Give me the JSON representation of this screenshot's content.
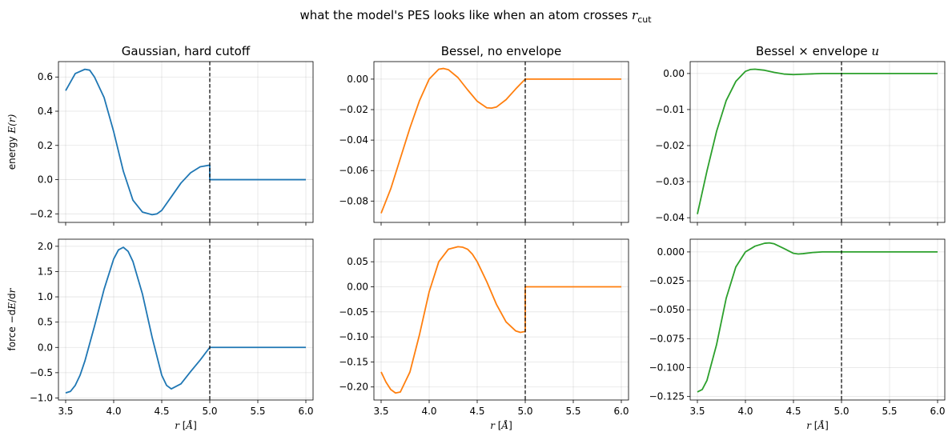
{
  "figure": {
    "suptitle": "what the model's PES looks like when an atom crosses r_cut",
    "suptitle_prefix": "what the model's PES looks like when an atom crosses ",
    "suptitle_math": "r",
    "suptitle_sub": "cut"
  },
  "chart_data": [
    {
      "type": "line",
      "row": 0,
      "col": 0,
      "title": "Gaussian, hard cutoff",
      "ylabel": "energy E(r)",
      "ylabel_prefix": "energy ",
      "ylabel_math": "E(r)",
      "xlabel": "",
      "xlim": [
        3.425,
        6.075
      ],
      "ylim": [
        -0.25,
        0.69
      ],
      "xticks": [
        "3.5",
        "4.0",
        "4.5",
        "5.0",
        "5.5",
        "6.0"
      ],
      "yticks": [
        "−0.2",
        "0.0",
        "0.2",
        "0.4",
        "0.6"
      ],
      "ytick_values": [
        -0.2,
        0.0,
        0.2,
        0.4,
        0.6
      ],
      "cutoff_x": 5.0,
      "grid": true,
      "series": [
        {
          "color": "#1f77b4",
          "x": [
            3.5,
            3.6,
            3.7,
            3.75,
            3.8,
            3.9,
            4.0,
            4.1,
            4.2,
            4.3,
            4.4,
            4.45,
            4.5,
            4.6,
            4.7,
            4.8,
            4.9,
            5.0,
            5.0,
            6.0
          ],
          "y": [
            0.52,
            0.62,
            0.645,
            0.64,
            0.6,
            0.48,
            0.28,
            0.05,
            -0.12,
            -0.19,
            -0.205,
            -0.2,
            -0.18,
            -0.1,
            -0.02,
            0.04,
            0.075,
            0.085,
            0.0,
            0.0
          ]
        }
      ]
    },
    {
      "type": "line",
      "row": 0,
      "col": 1,
      "title": "Bessel, no envelope",
      "ylabel": "",
      "xlabel": "",
      "xlim": [
        3.425,
        6.075
      ],
      "ylim": [
        -0.094,
        0.0115
      ],
      "xticks": [
        "3.5",
        "4.0",
        "4.5",
        "5.0",
        "5.5",
        "6.0"
      ],
      "yticks": [
        "−0.08",
        "−0.06",
        "−0.04",
        "−0.02",
        "0.00"
      ],
      "ytick_values": [
        -0.08,
        -0.06,
        -0.04,
        -0.02,
        0.0
      ],
      "cutoff_x": 5.0,
      "grid": true,
      "series": [
        {
          "color": "#ff7f0e",
          "x": [
            3.5,
            3.6,
            3.7,
            3.8,
            3.9,
            4.0,
            4.1,
            4.15,
            4.2,
            4.3,
            4.4,
            4.5,
            4.6,
            4.65,
            4.7,
            4.8,
            4.9,
            5.0,
            6.0
          ],
          "y": [
            -0.088,
            -0.072,
            -0.052,
            -0.032,
            -0.014,
            0.0,
            0.0065,
            0.007,
            0.0062,
            0.001,
            -0.007,
            -0.0145,
            -0.0188,
            -0.019,
            -0.0183,
            -0.0135,
            -0.0065,
            0.0,
            0.0
          ]
        }
      ]
    },
    {
      "type": "line",
      "row": 0,
      "col": 2,
      "title": "Bessel × envelope u",
      "title_prefix": "Bessel × envelope ",
      "title_math": "u",
      "ylabel": "",
      "xlabel": "",
      "xlim": [
        3.425,
        6.075
      ],
      "ylim": [
        -0.0413,
        0.0033
      ],
      "xticks": [
        "3.5",
        "4.0",
        "4.5",
        "5.0",
        "5.5",
        "6.0"
      ],
      "yticks": [
        "−0.04",
        "−0.03",
        "−0.02",
        "−0.01",
        "0.00"
      ],
      "ytick_values": [
        -0.04,
        -0.03,
        -0.02,
        -0.01,
        0.0
      ],
      "cutoff_x": 5.0,
      "grid": true,
      "series": [
        {
          "color": "#2ca02c",
          "x": [
            3.5,
            3.6,
            3.7,
            3.8,
            3.9,
            4.0,
            4.05,
            4.1,
            4.2,
            4.3,
            4.4,
            4.5,
            4.6,
            4.7,
            4.8,
            4.9,
            5.0,
            6.0
          ],
          "y": [
            -0.039,
            -0.027,
            -0.016,
            -0.0075,
            -0.0022,
            0.0006,
            0.0011,
            0.0012,
            0.0009,
            0.0003,
            -0.00015,
            -0.0003,
            -0.0002,
            -0.0001,
            0.0,
            0.0,
            0.0,
            0.0
          ]
        }
      ]
    },
    {
      "type": "line",
      "row": 1,
      "col": 0,
      "title": "",
      "ylabel": "force −dE/dr",
      "ylabel_prefix": "force −d",
      "ylabel_math": "E",
      "ylabel_suffix": "/d",
      "ylabel_math2": "r",
      "xlabel": "r [Å]",
      "xlabel_math": "r",
      "xlabel_suffix": " [",
      "xlabel_unit": "Å",
      "xlabel_close": "]",
      "xlim": [
        3.425,
        6.075
      ],
      "ylim": [
        -1.04,
        2.14
      ],
      "xticks": [
        "3.5",
        "4.0",
        "4.5",
        "5.0",
        "5.5",
        "6.0"
      ],
      "yticks": [
        "−1.0",
        "−0.5",
        "0.0",
        "0.5",
        "1.0",
        "1.5",
        "2.0"
      ],
      "ytick_values": [
        -1.0,
        -0.5,
        0.0,
        0.5,
        1.0,
        1.5,
        2.0
      ],
      "cutoff_x": 5.0,
      "grid": true,
      "series": [
        {
          "color": "#1f77b4",
          "x": [
            3.5,
            3.55,
            3.6,
            3.65,
            3.7,
            3.8,
            3.9,
            4.0,
            4.05,
            4.1,
            4.15,
            4.2,
            4.3,
            4.4,
            4.5,
            4.55,
            4.6,
            4.7,
            4.8,
            4.9,
            5.0,
            6.0
          ],
          "y": [
            -0.9,
            -0.87,
            -0.75,
            -0.55,
            -0.27,
            0.42,
            1.15,
            1.75,
            1.93,
            1.98,
            1.9,
            1.7,
            1.05,
            0.2,
            -0.55,
            -0.75,
            -0.82,
            -0.72,
            -0.48,
            -0.25,
            0.0,
            0.0
          ]
        }
      ]
    },
    {
      "type": "line",
      "row": 1,
      "col": 1,
      "title": "",
      "ylabel": "",
      "xlabel": "r [Å]",
      "xlabel_math": "r",
      "xlabel_suffix": " [",
      "xlabel_unit": "Å",
      "xlabel_close": "]",
      "xlim": [
        3.425,
        6.075
      ],
      "ylim": [
        -0.226,
        0.095
      ],
      "xticks": [
        "3.5",
        "4.0",
        "4.5",
        "5.0",
        "5.5",
        "6.0"
      ],
      "yticks": [
        "−0.20",
        "−0.15",
        "−0.10",
        "−0.05",
        "0.00",
        "0.05"
      ],
      "ytick_values": [
        -0.2,
        -0.15,
        -0.1,
        -0.05,
        0.0,
        0.05
      ],
      "cutoff_x": 5.0,
      "grid": true,
      "series": [
        {
          "color": "#ff7f0e",
          "x": [
            3.5,
            3.55,
            3.6,
            3.65,
            3.7,
            3.8,
            3.9,
            4.0,
            4.1,
            4.2,
            4.3,
            4.35,
            4.4,
            4.45,
            4.5,
            4.6,
            4.7,
            4.8,
            4.9,
            4.95,
            5.0,
            5.0,
            6.0
          ],
          "y": [
            -0.17,
            -0.19,
            -0.205,
            -0.212,
            -0.21,
            -0.17,
            -0.095,
            -0.01,
            0.05,
            0.075,
            0.08,
            0.079,
            0.075,
            0.065,
            0.05,
            0.01,
            -0.035,
            -0.07,
            -0.088,
            -0.091,
            -0.089,
            0.0,
            0.0
          ]
        }
      ]
    },
    {
      "type": "line",
      "row": 1,
      "col": 2,
      "title": "",
      "ylabel": "",
      "xlabel": "r [Å]",
      "xlabel_math": "r",
      "xlabel_suffix": " [",
      "xlabel_unit": "Å",
      "xlabel_close": "]",
      "xlim": [
        3.425,
        6.075
      ],
      "ylim": [
        -0.128,
        0.011
      ],
      "xticks": [
        "3.5",
        "4.0",
        "4.5",
        "5.0",
        "5.5",
        "6.0"
      ],
      "yticks": [
        "−0.125",
        "−0.100",
        "−0.075",
        "−0.050",
        "−0.025",
        "0.000"
      ],
      "ytick_values": [
        -0.125,
        -0.1,
        -0.075,
        -0.05,
        -0.025,
        0.0
      ],
      "cutoff_x": 5.0,
      "grid": true,
      "series": [
        {
          "color": "#2ca02c",
          "x": [
            3.5,
            3.55,
            3.6,
            3.7,
            3.8,
            3.9,
            4.0,
            4.1,
            4.2,
            4.25,
            4.3,
            4.4,
            4.5,
            4.55,
            4.6,
            4.7,
            4.8,
            4.9,
            5.0,
            6.0
          ],
          "y": [
            -0.121,
            -0.119,
            -0.111,
            -0.08,
            -0.04,
            -0.013,
            0.0,
            0.005,
            0.0075,
            0.0078,
            0.007,
            0.003,
            -0.0012,
            -0.0018,
            -0.0015,
            -0.0005,
            0.0,
            0.0,
            0.0,
            0.0
          ]
        }
      ]
    }
  ]
}
